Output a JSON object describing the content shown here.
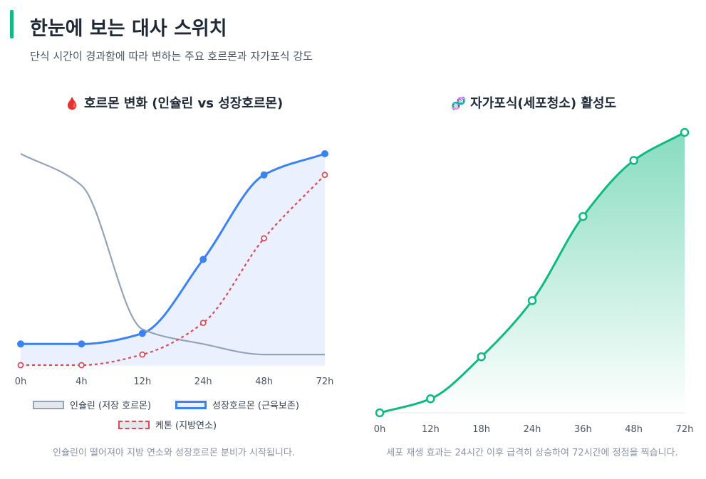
{
  "header": {
    "title": "한눈에 보는 대사 스위치",
    "subtitle": "단식 시간이 경과함에 따라 변하는 주요 호르몬과 자가포식 강도",
    "accent_color": "#10b981"
  },
  "panels": {
    "hormones": {
      "icon": "blood-drop-icon",
      "emoji": "🩸",
      "title": "호르몬 변화 (인슐린 vs 성장호르몬)",
      "caption": "인슐린이 떨어져야 지방 연소와 성장호르몬 분비가 시작됩니다."
    },
    "autophagy": {
      "icon": "dna-icon",
      "emoji": "🧬",
      "title": "자가포식(세포청소) 활성도",
      "caption": "세포 재생 효과는 24시간 이후 급격히 상승하여 72시간에 정점을 찍습니다."
    }
  },
  "chart_data": [
    {
      "type": "line",
      "title": "호르몬 변화 (인슐린 vs 성장호르몬)",
      "categories": [
        "0h",
        "4h",
        "12h",
        "24h",
        "48h",
        "72h"
      ],
      "ylim": [
        0,
        100
      ],
      "grid": false,
      "legend_position": "bottom",
      "series": [
        {
          "name": "인슐린 (저장 호르몬)",
          "values": [
            100,
            85,
            17,
            10,
            5,
            5
          ],
          "color": "#94a3b8",
          "fill": "#e5e7eb",
          "style": "solid",
          "markers": false,
          "filled": false
        },
        {
          "name": "성장호르몬 (근육보존)",
          "values": [
            10,
            10,
            15,
            50,
            90,
            100
          ],
          "color": "#3b82f6",
          "fill": "#eaf0fd",
          "style": "solid",
          "markers": true,
          "filled": true
        },
        {
          "name": "케톤 (지방연소)",
          "values": [
            0,
            0,
            5,
            20,
            60,
            90
          ],
          "color": "#dc4a5a",
          "fill": "#e5e7eb",
          "style": "dashed",
          "markers": true,
          "filled": false
        }
      ]
    },
    {
      "type": "area",
      "title": "자가포식(세포청소) 활성도",
      "categories": [
        "0h",
        "12h",
        "18h",
        "24h",
        "36h",
        "48h",
        "72h"
      ],
      "ylim": [
        0,
        100
      ],
      "grid": false,
      "legend_position": "none",
      "series": [
        {
          "values": [
            0,
            5,
            20,
            40,
            70,
            90,
            100
          ],
          "color": "#10b981"
        }
      ]
    }
  ]
}
